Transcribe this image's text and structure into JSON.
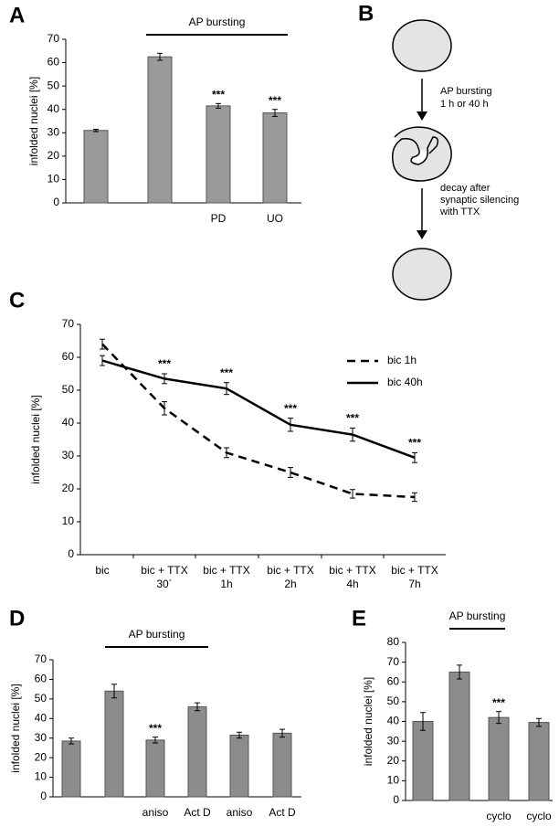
{
  "chart_data": [
    {
      "panel": "A",
      "type": "bar",
      "ylabel": "infolded nuclei [%]",
      "bracket": "AP bursting",
      "categories": [
        null,
        null,
        "PD",
        "UO"
      ],
      "values": [
        31,
        62.5,
        41.5,
        38.5
      ],
      "errors": [
        0.5,
        1.5,
        1,
        1.5
      ],
      "significance": [
        null,
        null,
        "***",
        "***"
      ],
      "color": "#9a9a9a",
      "ylim": [
        0,
        70
      ],
      "yticks": [
        0,
        10,
        20,
        30,
        40,
        50,
        60,
        70
      ]
    },
    {
      "panel": "C",
      "type": "line",
      "ylabel": "infolded nuclei [%]",
      "legend": "upper right",
      "categories": [
        [
          "bic"
        ],
        [
          "bic + TTX",
          "30´"
        ],
        [
          "bic + TTX",
          "1h"
        ],
        [
          "bic + TTX",
          "2h"
        ],
        [
          "bic + TTX",
          "4h"
        ],
        [
          "bic + TTX",
          "7h"
        ]
      ],
      "series": [
        {
          "name": "bic 1h",
          "color": "#000000",
          "dashed": true,
          "values": [
            64,
            44.5,
            31,
            25,
            18.5,
            17.5
          ],
          "errors": [
            1.5,
            2,
            1.5,
            1.5,
            1.3,
            1.3
          ]
        },
        {
          "name": "bic 40h",
          "color": "#000000",
          "dashed": false,
          "values": [
            59,
            53.5,
            50.5,
            39.5,
            36.5,
            29.5
          ],
          "errors": [
            1.5,
            1.5,
            1.8,
            2,
            2,
            1.5
          ]
        }
      ],
      "significance": [
        null,
        "***",
        "***",
        "***",
        "***",
        "***"
      ],
      "ylim": [
        0,
        70
      ],
      "yticks": [
        0,
        10,
        20,
        30,
        40,
        50,
        60,
        70
      ]
    },
    {
      "panel": "D",
      "type": "bar",
      "ylabel": "infolded nuclei [%]",
      "bracket": "AP bursting",
      "categories": [
        null,
        null,
        "aniso",
        "Act D",
        "aniso",
        "Act D"
      ],
      "values": [
        28.5,
        54,
        29,
        46,
        31.5,
        32.5
      ],
      "errors": [
        1.5,
        3.5,
        1.5,
        2,
        1.5,
        2
      ],
      "significance": [
        null,
        null,
        "***",
        null,
        null,
        null
      ],
      "color": "#8c8c8c",
      "ylim": [
        0,
        70
      ],
      "yticks": [
        0,
        10,
        20,
        30,
        40,
        50,
        60,
        70
      ]
    },
    {
      "panel": "E",
      "type": "bar",
      "ylabel": "infolded nuclei [%]",
      "bracket": "AP bursting",
      "categories": [
        null,
        null,
        "cyclo",
        "cyclo"
      ],
      "values": [
        40,
        65,
        42,
        39.5
      ],
      "errors": [
        4.5,
        3.5,
        3,
        2
      ],
      "significance": [
        null,
        null,
        "***",
        null
      ],
      "color": "#8c8c8c",
      "ylim": [
        0,
        80
      ],
      "yticks": [
        0,
        10,
        20,
        30,
        40,
        50,
        60,
        70,
        80
      ]
    }
  ],
  "diagram": {
    "panel": "B",
    "steps": [
      [
        "AP bursting",
        "1 h or 40 h"
      ],
      [
        "decay after",
        "synaptic silencing",
        "with TTX"
      ]
    ]
  }
}
